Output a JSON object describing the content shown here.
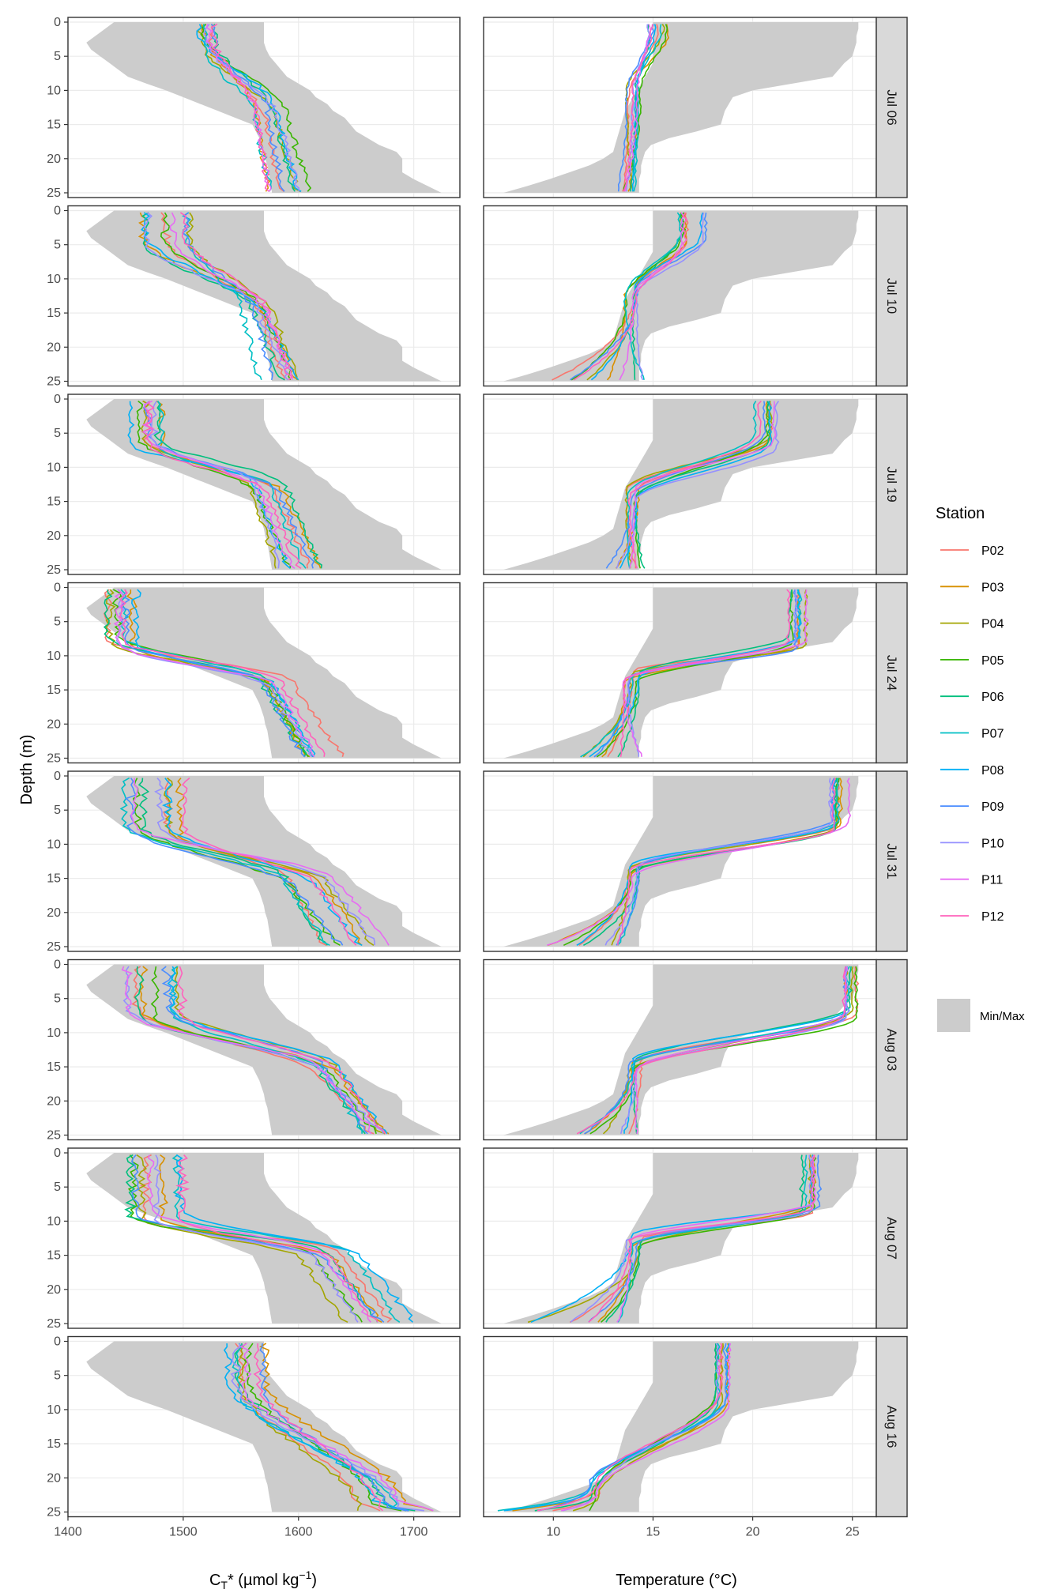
{
  "chart_data": {
    "type": "line",
    "layout": "faceted grid, 8 rows x 2 columns, shared y axis reversed",
    "y_axis": {
      "label": "Depth (m)",
      "ylim": [
        25,
        0
      ],
      "reversed": true,
      "ticks": [
        0,
        5,
        10,
        15,
        20,
        25
      ]
    },
    "columns": [
      {
        "id": "ct",
        "xlabel_main": "C",
        "xlabel_sub": "T",
        "xlabel_rest": "* (µmol kg",
        "xlabel_sup": "−1",
        "xlabel_end": ")",
        "xlim": [
          1400,
          1740
        ],
        "xticks": [
          1400,
          1500,
          1600,
          1700
        ]
      },
      {
        "id": "temp",
        "xlabel": "Temperature (°C)",
        "xlim": [
          6.5,
          26.2
        ],
        "xticks": [
          10,
          15,
          20,
          25
        ]
      }
    ],
    "facets": [
      "Jul 06",
      "Jul 10",
      "Jul 19",
      "Jul 24",
      "Jul 31",
      "Aug 03",
      "Aug 07",
      "Aug 16"
    ],
    "legend": {
      "title": "Station",
      "placement": "right",
      "stations": [
        {
          "name": "P02",
          "color": "#F8766D"
        },
        {
          "name": "P03",
          "color": "#D89000"
        },
        {
          "name": "P04",
          "color": "#A3A500"
        },
        {
          "name": "P05",
          "color": "#39B600"
        },
        {
          "name": "P06",
          "color": "#00BF7D"
        },
        {
          "name": "P07",
          "color": "#00BFC4"
        },
        {
          "name": "P08",
          "color": "#00B0F6"
        },
        {
          "name": "P09",
          "color": "#4B8DFF"
        },
        {
          "name": "P10",
          "color": "#9590FF"
        },
        {
          "name": "P11",
          "color": "#E76BF3"
        },
        {
          "name": "P12",
          "color": "#FF62BC"
        }
      ],
      "minmax_label": "Min/Max",
      "minmax_color": "#cccccc"
    },
    "envelope": {
      "ct": {
        "depth": [
          0,
          1,
          2,
          3,
          4,
          5,
          6,
          7,
          8,
          9,
          10,
          11,
          12,
          13,
          14,
          15,
          16,
          17,
          18,
          19,
          20,
          21,
          22,
          23,
          24,
          25
        ],
        "min": [
          1440,
          1432,
          1424,
          1416,
          1420,
          1428,
          1436,
          1444,
          1452,
          1468,
          1485,
          1500,
          1515,
          1530,
          1545,
          1560,
          1563,
          1566,
          1568,
          1570,
          1571,
          1573,
          1574,
          1575,
          1576,
          1577
        ],
        "max": [
          1570,
          1570,
          1570,
          1570,
          1572,
          1575,
          1580,
          1585,
          1590,
          1600,
          1610,
          1615,
          1625,
          1630,
          1640,
          1645,
          1650,
          1660,
          1670,
          1685,
          1690,
          1690,
          1690,
          1700,
          1712,
          1724
        ]
      },
      "temp": {
        "depth": [
          0,
          1,
          2,
          3,
          4,
          5,
          6,
          7,
          8,
          9,
          10,
          11,
          12,
          13,
          14,
          15,
          16,
          17,
          18,
          19,
          20,
          21,
          22,
          23,
          24,
          25
        ],
        "min": [
          15.0,
          15.0,
          15.0,
          15.0,
          15.0,
          15.0,
          15.0,
          14.8,
          14.6,
          14.4,
          14.2,
          14.0,
          13.8,
          13.6,
          13.5,
          13.4,
          13.3,
          13.2,
          13.1,
          13.0,
          12.5,
          11.8,
          10.8,
          9.8,
          8.7,
          7.5
        ],
        "max": [
          25.3,
          25.3,
          25.2,
          25.2,
          25.1,
          25.0,
          24.6,
          24.3,
          24.0,
          22.0,
          20.0,
          19.0,
          18.8,
          18.6,
          18.5,
          18.4,
          17.2,
          15.8,
          14.9,
          14.6,
          14.5,
          14.4,
          14.4,
          14.3,
          14.3,
          14.3
        ]
      }
    },
    "facet_profiles": [
      {
        "ct_surface": 1520,
        "ct_surface_spread": 12,
        "ct_mix": 2,
        "ct_grad_end": 14,
        "ct_bottom": 1592,
        "ct_bottom_spread": 18,
        "t_surface": 15.3,
        "t_surface_spread": 0.6,
        "t_mix": 1,
        "t_grad_end": 10,
        "t_deep": 14.0,
        "t_bottom": 13.6,
        "t_bottom_spread": 0.5
      },
      {
        "ct_surface": 1490,
        "ct_surface_spread": 30,
        "ct_mix": 4,
        "ct_grad_end": 15,
        "ct_bottom": 1592,
        "ct_bottom_spread": 28,
        "t_surface": 17.0,
        "t_surface_spread": 0.7,
        "t_mix": 4,
        "t_grad_end": 12,
        "t_deep": 13.9,
        "t_bottom": 12.2,
        "t_bottom_spread": 2.5
      },
      {
        "ct_surface": 1465,
        "ct_surface_spread": 18,
        "ct_mix": 6,
        "ct_grad_end": 13,
        "ct_bottom": 1602,
        "ct_bottom_spread": 22,
        "t_surface": 20.7,
        "t_surface_spread": 0.6,
        "t_mix": 6,
        "t_grad_end": 14,
        "t_deep": 14.0,
        "t_bottom": 13.6,
        "t_bottom_spread": 1.2
      },
      {
        "ct_surface": 1448,
        "ct_surface_spread": 14,
        "ct_mix": 8,
        "ct_grad_end": 14,
        "ct_bottom": 1622,
        "ct_bottom_spread": 22,
        "t_surface": 22.2,
        "t_surface_spread": 0.5,
        "t_mix": 8,
        "t_grad_end": 13,
        "t_deep": 13.9,
        "t_bottom": 12.8,
        "t_bottom_spread": 1.8
      },
      {
        "ct_surface": 1470,
        "ct_surface_spread": 40,
        "ct_mix": 8,
        "ct_grad_end": 16,
        "ct_bottom": 1652,
        "ct_bottom_spread": 30,
        "t_surface": 24.3,
        "t_surface_spread": 0.6,
        "t_mix": 7,
        "t_grad_end": 14,
        "t_deep": 14.0,
        "t_bottom": 11.8,
        "t_bottom_spread": 2.4
      },
      {
        "ct_surface": 1465,
        "ct_surface_spread": 35,
        "ct_mix": 7,
        "ct_grad_end": 16,
        "ct_bottom": 1668,
        "ct_bottom_spread": 14,
        "t_surface": 24.9,
        "t_surface_spread": 0.3,
        "t_mix": 7,
        "t_grad_end": 15,
        "t_deep": 14.0,
        "t_bottom": 12.4,
        "t_bottom_spread": 1.8
      },
      {
        "ct_surface": 1478,
        "ct_surface_spread": 28,
        "ct_mix": 9,
        "ct_grad_end": 15,
        "ct_bottom": 1672,
        "ct_bottom_spread": 32,
        "t_surface": 22.9,
        "t_surface_spread": 0.5,
        "t_mix": 8,
        "t_grad_end": 13,
        "t_deep": 14.0,
        "t_bottom": 10.8,
        "t_bottom_spread": 2.6
      },
      {
        "ct_surface": 1555,
        "ct_surface_spread": 18,
        "ct_mix": 6,
        "ct_grad_end": 24,
        "ct_bottom": 1700,
        "ct_bottom_spread": 28,
        "t_surface": 18.5,
        "t_surface_spread": 0.4,
        "t_mix": 8,
        "t_grad_end": 22,
        "t_deep": 12.0,
        "t_bottom": 9.5,
        "t_bottom_spread": 3.0
      }
    ]
  }
}
